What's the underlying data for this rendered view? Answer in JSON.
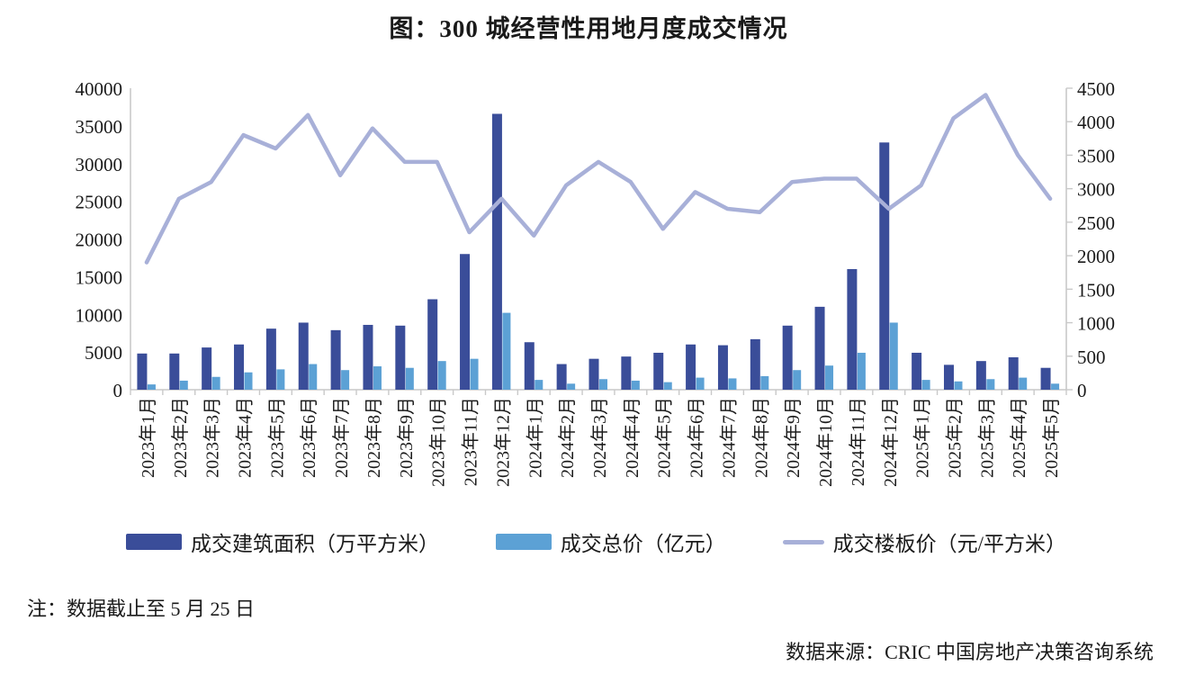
{
  "title": "图：300 城经营性用地月度成交情况",
  "note": "注：数据截止至 5 月 25 日",
  "source": "数据来源：CRIC 中国房地产决策咨询系统",
  "colors": {
    "bar_area": "#3A4D99",
    "bar_price": "#5CA1D5",
    "line_floor": "#A8B0D8",
    "axis": "#c9c9c9",
    "text": "#1a1a1a"
  },
  "legend": {
    "items": [
      {
        "label": "成交建筑面积（万平方米）",
        "swatch": "square",
        "color": "#3A4D99"
      },
      {
        "label": "成交总价（亿元）",
        "swatch": "square",
        "color": "#5CA1D5"
      },
      {
        "label": "成交楼板价（元/平方米）",
        "swatch": "line",
        "color": "#A8B0D8"
      }
    ]
  },
  "chart_data": {
    "type": "bar",
    "subtype": "dual-axis bar + line",
    "title": "图：300 城经营性用地月度成交情况",
    "grid": false,
    "legend_position": "bottom",
    "categories": [
      "2023年1月",
      "2023年2月",
      "2023年3月",
      "2023年4月",
      "2023年5月",
      "2023年6月",
      "2023年7月",
      "2023年8月",
      "2023年9月",
      "2023年10月",
      "2023年11月",
      "2023年12月",
      "2024年1月",
      "2024年2月",
      "2024年3月",
      "2024年4月",
      "2024年5月",
      "2024年6月",
      "2024年7月",
      "2024年8月",
      "2024年9月",
      "2024年10月",
      "2024年11月",
      "2024年12月",
      "2025年1月",
      "2025年2月",
      "2025年3月",
      "2025年4月",
      "2025年5月"
    ],
    "series": [
      {
        "name": "成交建筑面积（万平方米）",
        "type": "bar",
        "axis": "left",
        "color": "#3A4D99",
        "values": [
          4800,
          4800,
          5600,
          6000,
          8100,
          8900,
          7900,
          8600,
          8500,
          12000,
          18000,
          36600,
          6300,
          3400,
          4100,
          4400,
          4900,
          6000,
          5900,
          6700,
          8500,
          11000,
          16000,
          32800,
          4900,
          3300,
          3800,
          4300,
          2900
        ]
      },
      {
        "name": "成交总价（亿元）",
        "type": "bar",
        "axis": "left",
        "color": "#5CA1D5",
        "values": [
          700,
          1200,
          1700,
          2300,
          2700,
          3400,
          2600,
          3100,
          2900,
          3800,
          4100,
          10200,
          1300,
          800,
          1400,
          1200,
          1000,
          1600,
          1500,
          1800,
          2600,
          3200,
          4900,
          8900,
          1300,
          1100,
          1400,
          1600,
          800
        ]
      },
      {
        "name": "成交楼板价（元/平方米）",
        "type": "line",
        "axis": "right",
        "color": "#A8B0D8",
        "values": [
          1900,
          2850,
          3100,
          3800,
          3600,
          4100,
          3200,
          3900,
          3400,
          3400,
          2350,
          2850,
          2300,
          3050,
          3400,
          3100,
          2400,
          2950,
          2700,
          2650,
          3100,
          3150,
          3150,
          2700,
          3050,
          4050,
          4400,
          3500,
          2850
        ]
      }
    ],
    "left_axis": {
      "min": 0,
      "max": 40000,
      "step": 5000,
      "ticks": [
        "0",
        "5000",
        "10000",
        "15000",
        "20000",
        "25000",
        "30000",
        "35000",
        "40000"
      ]
    },
    "right_axis": {
      "min": 0,
      "max": 4500,
      "step": 500,
      "ticks": [
        "0",
        "500",
        "1000",
        "1500",
        "2000",
        "2500",
        "3000",
        "3500",
        "4000",
        "4500"
      ]
    }
  }
}
